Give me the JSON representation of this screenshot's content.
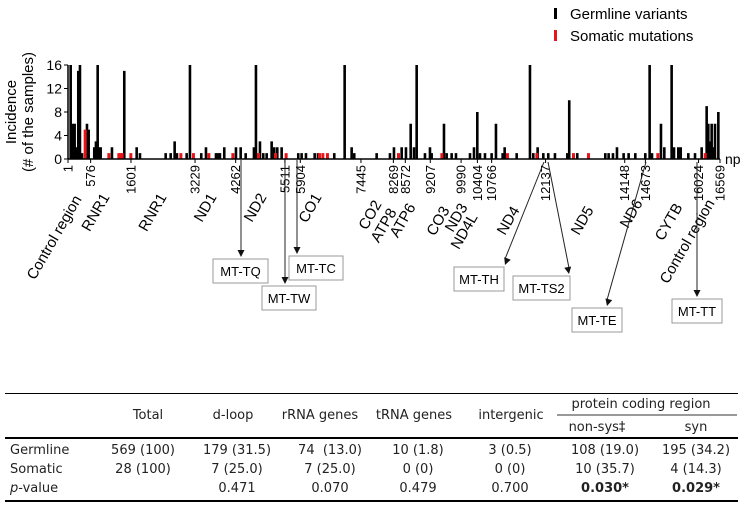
{
  "chart_data": {
    "type": "bar",
    "title": "",
    "xlabel": "np",
    "ylabel": "Incidence",
    "ylabel_sub": "(# of the samples)",
    "xlim": [
      1,
      16569
    ],
    "ylim": [
      0,
      16
    ],
    "yticks": [
      "0",
      "4",
      "8",
      "12",
      "16"
    ],
    "xticks": [
      "1",
      "576",
      "1601",
      "3229",
      "4262",
      "5511",
      "5904",
      "7445",
      "8269",
      "8572",
      "9207",
      "9990",
      "10404",
      "10766",
      "12137",
      "14148",
      "14673",
      "16024",
      "16569"
    ],
    "legend": {
      "placement": "top-right",
      "entries": [
        {
          "name": "Germline variants",
          "color": "#000000"
        },
        {
          "name": "Somatic mutations",
          "color": "#e8141a"
        }
      ]
    },
    "regions": [
      "Control region",
      "RNR1",
      "RNR1",
      "ND1",
      "ND2",
      "CO1",
      "CO2",
      "ATP8",
      "ATP6",
      "CO3",
      "ND3",
      "ND4L",
      "ND4",
      "ND5",
      "ND6",
      "CYTB",
      "Control region"
    ],
    "trna_annotations": [
      {
        "label": "MT-TQ",
        "position": 4330
      },
      {
        "label": "MT-TW",
        "position": 5511
      },
      {
        "label": "MT-TC",
        "position": 5850
      },
      {
        "label": "MT-TH",
        "position": 12137
      },
      {
        "label": "MT-TS2",
        "position": 12200
      },
      {
        "label": "MT-TE",
        "position": 14673
      },
      {
        "label": "MT-TT",
        "position": 15900
      }
    ],
    "series": [
      {
        "name": "Germline variants",
        "color": "#000000",
        "points": [
          [
            69,
            16
          ],
          [
            119,
            6
          ],
          [
            170,
            6
          ],
          [
            221,
            2
          ],
          [
            262,
            15
          ],
          [
            305,
            16
          ],
          [
            356,
            1
          ],
          [
            483,
            6
          ],
          [
            526,
            5
          ],
          [
            668,
            2
          ],
          [
            711,
            3
          ],
          [
            755,
            16
          ],
          [
            788,
            2
          ],
          [
            831,
            2
          ],
          [
            1118,
            2
          ],
          [
            1431,
            15
          ],
          [
            1746,
            2
          ],
          [
            1830,
            1
          ],
          [
            2483,
            1
          ],
          [
            2610,
            1
          ],
          [
            2711,
            3
          ],
          [
            2770,
            1
          ],
          [
            3016,
            1
          ],
          [
            3100,
            16
          ],
          [
            3387,
            1
          ],
          [
            3507,
            2
          ],
          [
            3761,
            1
          ],
          [
            3812,
            1
          ],
          [
            3862,
            1
          ],
          [
            3972,
            2
          ],
          [
            4269,
            2
          ],
          [
            4389,
            2
          ],
          [
            4516,
            1
          ],
          [
            4726,
            2
          ],
          [
            4777,
            16
          ],
          [
            4879,
            3
          ],
          [
            4963,
            1
          ],
          [
            5049,
            1
          ],
          [
            5176,
            3
          ],
          [
            5242,
            2
          ],
          [
            5319,
            2
          ],
          [
            5430,
            2
          ],
          [
            5852,
            1
          ],
          [
            5938,
            1
          ],
          [
            6048,
            1
          ],
          [
            6269,
            1
          ],
          [
            6353,
            1
          ],
          [
            6767,
            1
          ],
          [
            7031,
            16
          ],
          [
            7209,
            2
          ],
          [
            7275,
            1
          ],
          [
            7844,
            1
          ],
          [
            8182,
            1
          ],
          [
            8284,
            2
          ],
          [
            8480,
            2
          ],
          [
            8589,
            2
          ],
          [
            8709,
            6
          ],
          [
            8793,
            2
          ],
          [
            8861,
            16
          ],
          [
            9072,
            1
          ],
          [
            9199,
            2
          ],
          [
            9242,
            1
          ],
          [
            9555,
            6
          ],
          [
            9623,
            1
          ],
          [
            9750,
            1
          ],
          [
            9860,
            1
          ],
          [
            10216,
            1
          ],
          [
            10318,
            2
          ],
          [
            10402,
            8
          ],
          [
            10470,
            1
          ],
          [
            10597,
            1
          ],
          [
            10766,
            1
          ],
          [
            10876,
            6
          ],
          [
            11046,
            1
          ],
          [
            11097,
            2
          ],
          [
            11402,
            1
          ],
          [
            11740,
            16
          ],
          [
            11825,
            1
          ],
          [
            11935,
            2
          ],
          [
            12079,
            1
          ],
          [
            12205,
            1
          ],
          [
            12375,
            1
          ],
          [
            12688,
            1
          ],
          [
            12738,
            10
          ],
          [
            12942,
            1
          ],
          [
            13654,
            1
          ],
          [
            13739,
            1
          ],
          [
            13849,
            1
          ],
          [
            13951,
            2
          ],
          [
            14120,
            1
          ],
          [
            14247,
            1
          ],
          [
            14417,
            1
          ],
          [
            14671,
            1
          ],
          [
            14781,
            16
          ],
          [
            14841,
            1
          ],
          [
            15069,
            6
          ],
          [
            15154,
            2
          ],
          [
            15340,
            16
          ],
          [
            15400,
            2
          ],
          [
            15509,
            2
          ],
          [
            15570,
            2
          ],
          [
            15764,
            1
          ],
          [
            15934,
            1
          ],
          [
            16103,
            2
          ],
          [
            16230,
            9
          ],
          [
            16272,
            6
          ],
          [
            16315,
            3
          ],
          [
            16357,
            6
          ],
          [
            16400,
            2
          ],
          [
            16442,
            6
          ],
          [
            16527,
            8
          ]
        ]
      },
      {
        "name": "Somatic mutations",
        "color": "#e8141a",
        "points": [
          [
            432,
            5
          ],
          [
            1034,
            1
          ],
          [
            1288,
            1
          ],
          [
            1339,
            1
          ],
          [
            1372,
            1
          ],
          [
            1593,
            1
          ],
          [
            2864,
            1
          ],
          [
            3184,
            1
          ],
          [
            3575,
            1
          ],
          [
            4185,
            1
          ],
          [
            4836,
            1
          ],
          [
            5268,
            1
          ],
          [
            5539,
            1
          ],
          [
            6386,
            1
          ],
          [
            6472,
            1
          ],
          [
            6589,
            1
          ],
          [
            8394,
            1
          ],
          [
            9496,
            1
          ],
          [
            11163,
            1
          ],
          [
            11910,
            1
          ],
          [
            12841,
            1
          ],
          [
            13222,
            1
          ],
          [
            14984,
            1
          ],
          [
            16187,
            1
          ]
        ]
      }
    ]
  },
  "table": {
    "headers": {
      "total": "Total",
      "dloop": "d-loop",
      "rrna": "rRNA genes",
      "trna": "tRNA genes",
      "intergenic": "intergenic",
      "protein": "protein coding region",
      "nonsys": "non-sys‡",
      "syn": "syn"
    },
    "rows": [
      {
        "label": "Germline",
        "cells": [
          "569 (100)",
          "179 (31.5)",
          "74  (13.0)",
          "10 (1.8)",
          "3 (0.5)",
          "108 (19.0)",
          "195 (34.2)"
        ]
      },
      {
        "label": "Somatic",
        "cells": [
          "28 (100)",
          "7 (25.0)",
          "7 (25.0)",
          "0 (0)",
          "0 (0)",
          "10 (35.7)",
          "4 (14.3)"
        ]
      },
      {
        "label_italic": "p",
        "label": "-value",
        "cells": [
          "",
          "0.471",
          "0.070",
          "0.479",
          "0.700",
          "0.030*",
          "0.029*"
        ]
      }
    ]
  }
}
